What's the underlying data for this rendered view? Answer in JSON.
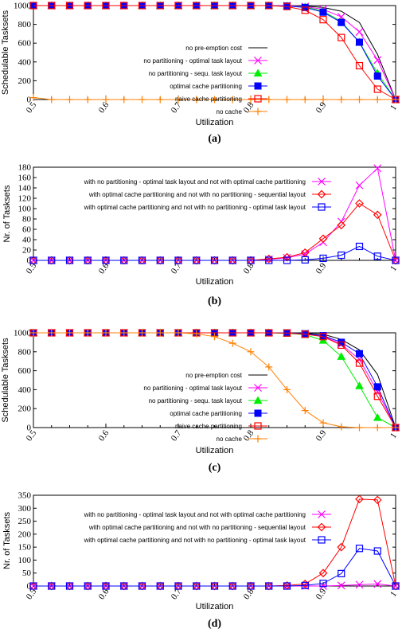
{
  "chart_data": [
    {
      "type": "line",
      "caption": "(a)",
      "xlabel": "Utilization",
      "ylabel": "Schedulable Tasksets",
      "xlim": [
        0.5,
        1.0
      ],
      "ylim": [
        0,
        1000
      ],
      "xticks": [
        "0.5",
        "0.6",
        "0.7",
        "0.8",
        "0.9",
        "1"
      ],
      "yticks": [
        "0",
        "200",
        "400",
        "600",
        "800",
        "1000"
      ],
      "x": [
        0.5,
        0.525,
        0.55,
        0.575,
        0.6,
        0.625,
        0.65,
        0.675,
        0.7,
        0.725,
        0.75,
        0.775,
        0.8,
        0.825,
        0.85,
        0.875,
        0.9,
        0.925,
        0.95,
        0.975,
        1.0
      ],
      "legend_position": "right",
      "series": [
        {
          "name": "no pre-emption cost",
          "color": "#000000",
          "marker": "none",
          "values": [
            1000,
            1000,
            1000,
            1000,
            1000,
            1000,
            1000,
            1000,
            1000,
            1000,
            1000,
            1000,
            1000,
            1000,
            1000,
            995,
            980,
            940,
            820,
            480,
            0
          ]
        },
        {
          "name": "no partitioning - optimal task layout",
          "color": "#ff00ff",
          "marker": "x",
          "values": [
            1000,
            1000,
            1000,
            1000,
            1000,
            1000,
            1000,
            1000,
            1000,
            1000,
            1000,
            1000,
            1000,
            1000,
            1000,
            990,
            960,
            880,
            720,
            420,
            0
          ]
        },
        {
          "name": "no partitioning - sequ. task layout",
          "color": "#00ee00",
          "marker": "triangle",
          "values": [
            1000,
            1000,
            1000,
            1000,
            1000,
            1000,
            1000,
            1000,
            1000,
            1000,
            1000,
            1000,
            1000,
            1000,
            995,
            985,
            940,
            830,
            610,
            280,
            0
          ]
        },
        {
          "name": "optimal cache partitioning",
          "color": "#0000ff",
          "marker": "square-filled",
          "values": [
            1000,
            1000,
            1000,
            1000,
            1000,
            1000,
            1000,
            1000,
            1000,
            1000,
            1000,
            1000,
            1000,
            1000,
            995,
            980,
            930,
            820,
            610,
            250,
            0
          ]
        },
        {
          "name": "naive cache partitioning",
          "color": "#ff0000",
          "marker": "square-open",
          "values": [
            1000,
            1000,
            1000,
            1000,
            1000,
            1000,
            1000,
            1000,
            1000,
            1000,
            1000,
            1000,
            1000,
            1000,
            990,
            950,
            850,
            660,
            360,
            110,
            0
          ]
        },
        {
          "name": "no cache",
          "color": "#ff7f00",
          "marker": "plus",
          "values": [
            20,
            0,
            0,
            0,
            0,
            0,
            0,
            0,
            0,
            0,
            0,
            0,
            0,
            0,
            0,
            0,
            0,
            0,
            0,
            0,
            0
          ]
        }
      ]
    },
    {
      "type": "line",
      "caption": "(b)",
      "xlabel": "Utilization",
      "ylabel": "Nr. of Tasksets",
      "xlim": [
        0.5,
        1.0
      ],
      "ylim": [
        0,
        180
      ],
      "xticks": [
        "0.5",
        "0.6",
        "0.7",
        "0.8",
        "0.9",
        "1"
      ],
      "yticks": [
        "0",
        "20",
        "40",
        "60",
        "80",
        "100",
        "120",
        "140",
        "160",
        "180"
      ],
      "x": [
        0.5,
        0.525,
        0.55,
        0.575,
        0.6,
        0.625,
        0.65,
        0.675,
        0.7,
        0.725,
        0.75,
        0.775,
        0.8,
        0.825,
        0.85,
        0.875,
        0.9,
        0.925,
        0.95,
        0.975,
        1.0
      ],
      "legend_position": "top-left",
      "series": [
        {
          "name": "with no partitioning - optimal task layout and not with optimal cache partitioning",
          "color": "#ff00ff",
          "marker": "x",
          "values": [
            0,
            0,
            0,
            0,
            0,
            0,
            0,
            0,
            0,
            0,
            0,
            0,
            0,
            2,
            5,
            12,
            35,
            75,
            145,
            178,
            0
          ]
        },
        {
          "name": "with optimal cache partitioning and not with no partitioning - sequential layout",
          "color": "#ff0000",
          "marker": "diamond",
          "values": [
            0,
            0,
            0,
            0,
            0,
            0,
            0,
            0,
            0,
            0,
            0,
            0,
            0,
            3,
            6,
            15,
            42,
            68,
            110,
            88,
            0
          ]
        },
        {
          "name": "with optimal cache partitioning and not with no partitioning - optimal task layout",
          "color": "#0000ff",
          "marker": "square-open",
          "values": [
            0,
            0,
            0,
            0,
            0,
            0,
            0,
            0,
            0,
            0,
            0,
            0,
            0,
            0,
            0,
            1,
            4,
            10,
            27,
            8,
            0
          ]
        }
      ]
    },
    {
      "type": "line",
      "caption": "(c)",
      "xlabel": "Utilization",
      "ylabel": "Schedulable Tasksets",
      "xlim": [
        0.5,
        1.0
      ],
      "ylim": [
        0,
        1000
      ],
      "xticks": [
        "0.5",
        "0.6",
        "0.7",
        "0.8",
        "0.9",
        "1"
      ],
      "yticks": [
        "0",
        "200",
        "400",
        "600",
        "800",
        "1000"
      ],
      "x": [
        0.5,
        0.525,
        0.55,
        0.575,
        0.6,
        0.625,
        0.65,
        0.675,
        0.7,
        0.725,
        0.75,
        0.775,
        0.8,
        0.825,
        0.85,
        0.875,
        0.9,
        0.925,
        0.95,
        0.975,
        1.0
      ],
      "legend_position": "right",
      "series": [
        {
          "name": "no pre-emption cost",
          "color": "#000000",
          "marker": "none",
          "values": [
            1000,
            1000,
            1000,
            1000,
            1000,
            1000,
            1000,
            1000,
            1000,
            1000,
            1000,
            1000,
            1000,
            1000,
            1000,
            995,
            985,
            930,
            820,
            560,
            0
          ]
        },
        {
          "name": "no partitioning - optimal task layout",
          "color": "#ff00ff",
          "marker": "x",
          "values": [
            1000,
            1000,
            1000,
            1000,
            1000,
            1000,
            1000,
            1000,
            1000,
            1000,
            1000,
            1000,
            1000,
            1000,
            1000,
            990,
            965,
            880,
            720,
            380,
            0
          ]
        },
        {
          "name": "no partitioning - sequ. task layout",
          "color": "#00ee00",
          "marker": "triangle",
          "values": [
            1000,
            1000,
            1000,
            1000,
            1000,
            1000,
            1000,
            1000,
            1000,
            1000,
            1000,
            1000,
            1000,
            1000,
            995,
            980,
            920,
            750,
            440,
            105,
            0
          ]
        },
        {
          "name": "optimal cache partitioning",
          "color": "#0000ff",
          "marker": "square-filled",
          "values": [
            1000,
            1000,
            1000,
            1000,
            1000,
            1000,
            1000,
            1000,
            1000,
            1000,
            1000,
            1000,
            1000,
            1000,
            998,
            990,
            970,
            900,
            780,
            430,
            0
          ]
        },
        {
          "name": "naive cache partitioning",
          "color": "#ff0000",
          "marker": "square-open",
          "values": [
            1000,
            1000,
            1000,
            1000,
            1000,
            1000,
            1000,
            1000,
            1000,
            1000,
            1000,
            1000,
            1000,
            1000,
            998,
            985,
            960,
            870,
            680,
            330,
            0
          ]
        },
        {
          "name": "no cache",
          "color": "#ff7f00",
          "marker": "plus",
          "values": [
            1000,
            1000,
            1000,
            1000,
            1000,
            1000,
            1000,
            1000,
            1000,
            990,
            960,
            890,
            800,
            640,
            400,
            180,
            50,
            8,
            0,
            0,
            0
          ]
        }
      ]
    },
    {
      "type": "line",
      "caption": "(d)",
      "xlabel": "Utilization",
      "ylabel": "Nr. of Tasksets",
      "xlim": [
        0.5,
        1.0
      ],
      "ylim": [
        0,
        350
      ],
      "xticks": [
        "0.5",
        "0.6",
        "0.7",
        "0.8",
        "0.9",
        "1"
      ],
      "yticks": [
        "0",
        "50",
        "100",
        "150",
        "200",
        "250",
        "300",
        "350"
      ],
      "x": [
        0.5,
        0.525,
        0.55,
        0.575,
        0.6,
        0.625,
        0.65,
        0.675,
        0.7,
        0.725,
        0.75,
        0.775,
        0.8,
        0.825,
        0.85,
        0.875,
        0.9,
        0.925,
        0.95,
        0.975,
        1.0
      ],
      "legend_position": "top-left",
      "series": [
        {
          "name": "with no partitioning - optimal task layout and not with optimal cache partitioning",
          "color": "#ff00ff",
          "marker": "x",
          "values": [
            0,
            0,
            0,
            0,
            0,
            0,
            0,
            0,
            0,
            0,
            0,
            0,
            0,
            0,
            0,
            0,
            0,
            2,
            5,
            8,
            0
          ]
        },
        {
          "name": "with optimal cache partitioning and not with no partitioning - sequential layout",
          "color": "#ff0000",
          "marker": "diamond",
          "values": [
            0,
            0,
            0,
            0,
            0,
            0,
            0,
            0,
            0,
            0,
            0,
            0,
            0,
            0,
            2,
            8,
            50,
            150,
            335,
            332,
            0
          ]
        },
        {
          "name": "with optimal cache partitioning and not with no partitioning - optimal task layout",
          "color": "#0000ff",
          "marker": "square-open",
          "values": [
            0,
            0,
            0,
            0,
            0,
            0,
            0,
            0,
            0,
            0,
            0,
            0,
            0,
            0,
            0,
            2,
            10,
            48,
            145,
            135,
            0
          ]
        }
      ]
    }
  ]
}
